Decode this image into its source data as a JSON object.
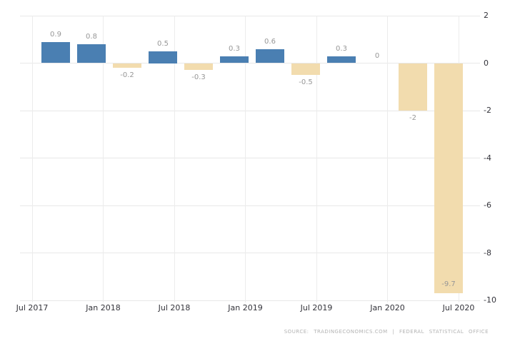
{
  "chart_data": {
    "type": "bar",
    "title": "",
    "xlabel": "",
    "ylabel": "",
    "ylim": [
      -10,
      2
    ],
    "grid": true,
    "legend": false,
    "y_axis_side": "right",
    "y_ticks": [
      2,
      0,
      -2,
      -4,
      -6,
      -8,
      -10
    ],
    "y_tick_labels": [
      "2",
      "0",
      "-2",
      "-4",
      "-6",
      "-8",
      "-10"
    ],
    "x_tick_labels": [
      "Jul 2017",
      "Jan 2018",
      "Jul 2018",
      "Jan 2019",
      "Jul 2019",
      "Jan 2020",
      "Jul 2020"
    ],
    "bars": [
      {
        "value": 0.9,
        "label": "0.9"
      },
      {
        "value": 0.8,
        "label": "0.8"
      },
      {
        "value": -0.2,
        "label": "-0.2"
      },
      {
        "value": 0.5,
        "label": "0.5"
      },
      {
        "value": -0.3,
        "label": "-0.3"
      },
      {
        "value": 0.3,
        "label": "0.3"
      },
      {
        "value": 0.6,
        "label": "0.6"
      },
      {
        "value": -0.5,
        "label": "-0.5"
      },
      {
        "value": 0.3,
        "label": "0.3"
      },
      {
        "value": 0,
        "label": "0"
      },
      {
        "value": -2,
        "label": "-2"
      },
      {
        "value": -9.7,
        "label": "-9.7"
      }
    ],
    "colors": {
      "positive_bar": "#4a7fb2",
      "negative_bar": "#f2dcae",
      "grid_line": "#e8e8e8",
      "value_label": "#979797",
      "axis_label": "#33333a",
      "source_text": "#b3b3b3",
      "background": "#ffffff"
    },
    "source": "SOURCE: TRADINGECONOMICS.COM | FEDERAL STATISTICAL OFFICE"
  }
}
